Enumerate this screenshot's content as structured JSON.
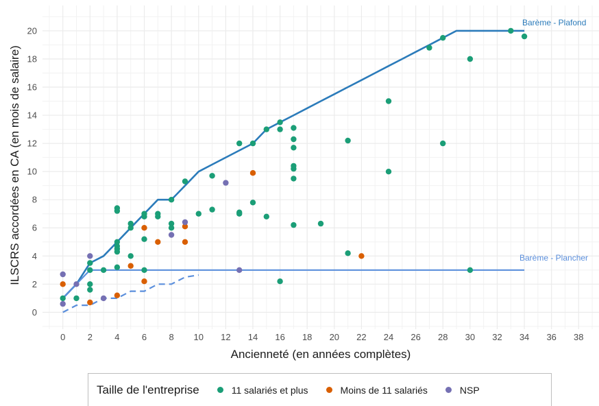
{
  "chart_data": {
    "type": "scatter",
    "xlabel": "Ancienneté (en années complètes)",
    "ylabel": "ILSCRS accordées en CA (en mois de salaire)",
    "xlim": [
      -1.5,
      39.5
    ],
    "ylim": [
      -1.2,
      21.8
    ],
    "x_ticks": [
      0,
      2,
      4,
      6,
      8,
      10,
      12,
      14,
      16,
      18,
      20,
      22,
      24,
      26,
      28,
      30,
      32,
      34,
      36,
      38
    ],
    "y_ticks": [
      0,
      2,
      4,
      6,
      8,
      10,
      12,
      14,
      16,
      18,
      20
    ],
    "grid": true,
    "legend": {
      "title": "Taille de l'entreprise",
      "position": "bottom"
    },
    "colors": {
      "11 salariés et plus": "#1b9e77",
      "Moins de 11 salariés": "#d95f02",
      "NSP": "#7570b3",
      "plafond": "#2b7bba",
      "plancher": "#5b8fdc",
      "grid": "#ebebeb"
    },
    "reference_lines": [
      {
        "name": "Barème - Plafond",
        "style": "solid",
        "x": [
          0,
          1,
          2,
          3,
          4,
          5,
          6,
          7,
          8,
          9,
          10,
          11,
          12,
          13,
          14,
          15,
          16,
          17,
          18,
          19,
          20,
          21,
          22,
          23,
          24,
          25,
          26,
          27,
          28,
          29,
          30,
          31,
          32,
          33,
          34
        ],
        "y": [
          1,
          2,
          3.5,
          4,
          5,
          6,
          7,
          8,
          8,
          9,
          10,
          10.5,
          11,
          11.5,
          12,
          13,
          13.5,
          14,
          14.5,
          15,
          15.5,
          16,
          16.5,
          17,
          17.5,
          18,
          18.5,
          19,
          19.5,
          20,
          20,
          20,
          20,
          20,
          20
        ]
      },
      {
        "name": "Barème - Plancher",
        "style": "solid",
        "x": [
          0,
          1,
          2,
          3,
          4,
          5,
          6,
          7,
          8,
          9,
          10,
          11,
          12,
          13,
          14,
          15,
          16,
          17,
          18,
          19,
          20,
          21,
          22,
          23,
          24,
          25,
          26,
          27,
          28,
          29,
          30,
          31,
          32,
          33,
          34
        ],
        "y": [
          1,
          2,
          3,
          3,
          3,
          3,
          3,
          3,
          3,
          3,
          3,
          3,
          3,
          3,
          3,
          3,
          3,
          3,
          3,
          3,
          3,
          3,
          3,
          3,
          3,
          3,
          3,
          3,
          3,
          3,
          3,
          3,
          3,
          3,
          3
        ]
      },
      {
        "name": "",
        "style": "dashed",
        "x": [
          0,
          1,
          2,
          3,
          4,
          5,
          6,
          7,
          8,
          9,
          10
        ],
        "y": [
          0,
          0.5,
          0.5,
          1,
          1,
          1.5,
          1.5,
          2,
          2,
          2.5,
          2.65
        ]
      }
    ],
    "series": [
      {
        "name": "11 salariés et plus",
        "points": [
          [
            0,
            1
          ],
          [
            1,
            1
          ],
          [
            2,
            1.6
          ],
          [
            2,
            2
          ],
          [
            2,
            3
          ],
          [
            2,
            3.5
          ],
          [
            3,
            3
          ],
          [
            4,
            3.2
          ],
          [
            4,
            4.3
          ],
          [
            4,
            4.5
          ],
          [
            4,
            4.7
          ],
          [
            4,
            5
          ],
          [
            4,
            7.2
          ],
          [
            4,
            7.4
          ],
          [
            5,
            4
          ],
          [
            5,
            6
          ],
          [
            5,
            6.3
          ],
          [
            6,
            3
          ],
          [
            6,
            5.2
          ],
          [
            6,
            6.8
          ],
          [
            6,
            7
          ],
          [
            7,
            6.8
          ],
          [
            7,
            7
          ],
          [
            8,
            6
          ],
          [
            8,
            6.3
          ],
          [
            8,
            8
          ],
          [
            9,
            9.3
          ],
          [
            10,
            7
          ],
          [
            11,
            7.3
          ],
          [
            11,
            9.7
          ],
          [
            13,
            7
          ],
          [
            13,
            7.1
          ],
          [
            13,
            12
          ],
          [
            14,
            7.8
          ],
          [
            14,
            12
          ],
          [
            15,
            6.8
          ],
          [
            15,
            13
          ],
          [
            16,
            2.2
          ],
          [
            16,
            13
          ],
          [
            16,
            13.5
          ],
          [
            17,
            6.2
          ],
          [
            17,
            9.5
          ],
          [
            17,
            10.2
          ],
          [
            17,
            10.4
          ],
          [
            17,
            11.7
          ],
          [
            17,
            12.3
          ],
          [
            17,
            13.1
          ],
          [
            19,
            6.3
          ],
          [
            21,
            4.2
          ],
          [
            21,
            12.2
          ],
          [
            24,
            10
          ],
          [
            24,
            15
          ],
          [
            27,
            18.8
          ],
          [
            28,
            12
          ],
          [
            28,
            19.5
          ],
          [
            30,
            3
          ],
          [
            30,
            18
          ],
          [
            33,
            20
          ],
          [
            34,
            19.6
          ]
        ]
      },
      {
        "name": "Moins de 11 salariés",
        "points": [
          [
            0,
            2
          ],
          [
            2,
            0.7
          ],
          [
            4,
            1.2
          ],
          [
            5,
            3.3
          ],
          [
            6,
            2.2
          ],
          [
            6,
            6
          ],
          [
            7,
            5
          ],
          [
            9,
            5
          ],
          [
            9,
            6.1
          ],
          [
            14,
            9.9
          ],
          [
            22,
            4
          ]
        ]
      },
      {
        "name": "NSP",
        "points": [
          [
            0,
            0.6
          ],
          [
            0,
            2.7
          ],
          [
            1,
            2
          ],
          [
            2,
            4
          ],
          [
            3,
            1
          ],
          [
            8,
            5.5
          ],
          [
            9,
            6.4
          ],
          [
            12,
            9.2
          ],
          [
            13,
            3
          ]
        ]
      }
    ]
  }
}
